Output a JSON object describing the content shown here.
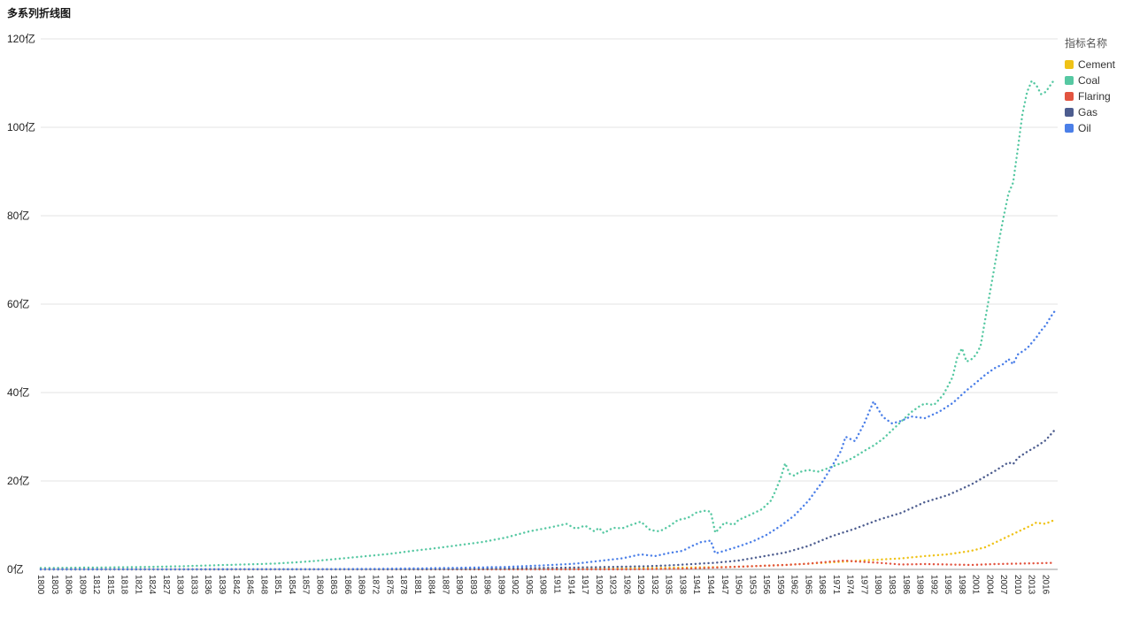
{
  "page": {
    "title": "多系列折线图"
  },
  "legend": {
    "title": "指标名称",
    "items": [
      {
        "label": "Cement",
        "color": "#EFC217"
      },
      {
        "label": "Coal",
        "color": "#56C8A2"
      },
      {
        "label": "Flaring",
        "color": "#E25440"
      },
      {
        "label": "Gas",
        "color": "#4D5D8F"
      },
      {
        "label": "Oil",
        "color": "#4B7FE8"
      }
    ]
  },
  "chart_data": {
    "type": "line",
    "point_style": "dotted",
    "title": "多系列折线图",
    "xlabel": "",
    "ylabel": "",
    "values_unit": "亿",
    "ylim": [
      0,
      120
    ],
    "x_start": 1800,
    "x_end": 2018,
    "x_step": 1,
    "interpolation": "linear",
    "grid": true,
    "legend_position": "top-right",
    "axis": {
      "y_ticks": [
        "0亿",
        "20亿",
        "40亿",
        "60亿",
        "80亿",
        "100亿",
        "120亿"
      ],
      "y_tick_values": [
        0,
        20,
        40,
        60,
        80,
        100,
        120
      ],
      "x_ticks": [
        1800,
        1803,
        1806,
        1809,
        1812,
        1815,
        1818,
        1821,
        1824,
        1827,
        1830,
        1833,
        1836,
        1839,
        1842,
        1845,
        1848,
        1851,
        1854,
        1857,
        1860,
        1863,
        1866,
        1869,
        1872,
        1875,
        1878,
        1881,
        1884,
        1887,
        1890,
        1893,
        1896,
        1899,
        1902,
        1905,
        1908,
        1911,
        1914,
        1917,
        1920,
        1923,
        1926,
        1929,
        1932,
        1935,
        1938,
        1941,
        1944,
        1947,
        1950,
        1953,
        1956,
        1959,
        1962,
        1965,
        1968,
        1971,
        1974,
        1977,
        1980,
        1983,
        1986,
        1989,
        1992,
        1995,
        1998,
        2001,
        2004,
        2007,
        2010,
        2013,
        2016
      ]
    },
    "series": [
      {
        "name": "Cement",
        "color": "#EFC217",
        "keypoints": [
          [
            1800,
            0
          ],
          [
            1895,
            0.02
          ],
          [
            1910,
            0.1
          ],
          [
            1920,
            0.18
          ],
          [
            1930,
            0.3
          ],
          [
            1940,
            0.42
          ],
          [
            1950,
            0.6
          ],
          [
            1960,
            1.0
          ],
          [
            1970,
            1.6
          ],
          [
            1980,
            2.2
          ],
          [
            1985,
            2.5
          ],
          [
            1990,
            3.0
          ],
          [
            1995,
            3.4
          ],
          [
            2000,
            4.2
          ],
          [
            2003,
            5.0
          ],
          [
            2005,
            6.0
          ],
          [
            2008,
            7.5
          ],
          [
            2010,
            8.5
          ],
          [
            2012,
            9.5
          ],
          [
            2013,
            10.0
          ],
          [
            2014,
            10.6
          ],
          [
            2015,
            10.4
          ],
          [
            2016,
            10.3
          ],
          [
            2017,
            10.8
          ],
          [
            2018,
            11.2
          ]
        ]
      },
      {
        "name": "Coal",
        "color": "#56C8A2",
        "keypoints": [
          [
            1800,
            0.3
          ],
          [
            1810,
            0.4
          ],
          [
            1820,
            0.5
          ],
          [
            1830,
            0.7
          ],
          [
            1840,
            1.0
          ],
          [
            1850,
            1.3
          ],
          [
            1855,
            1.6
          ],
          [
            1860,
            2.0
          ],
          [
            1865,
            2.5
          ],
          [
            1870,
            3.0
          ],
          [
            1875,
            3.5
          ],
          [
            1880,
            4.2
          ],
          [
            1885,
            4.8
          ],
          [
            1890,
            5.5
          ],
          [
            1895,
            6.2
          ],
          [
            1900,
            7.2
          ],
          [
            1905,
            8.6
          ],
          [
            1910,
            9.6
          ],
          [
            1913,
            10.3
          ],
          [
            1915,
            9.2
          ],
          [
            1917,
            9.9
          ],
          [
            1919,
            8.6
          ],
          [
            1920,
            9.4
          ],
          [
            1921,
            8.2
          ],
          [
            1923,
            9.4
          ],
          [
            1925,
            9.3
          ],
          [
            1927,
            10.1
          ],
          [
            1929,
            10.8
          ],
          [
            1931,
            8.9
          ],
          [
            1933,
            8.6
          ],
          [
            1935,
            9.7
          ],
          [
            1937,
            11.2
          ],
          [
            1939,
            11.6
          ],
          [
            1941,
            12.9
          ],
          [
            1943,
            13.3
          ],
          [
            1944,
            13.0
          ],
          [
            1945,
            8.3
          ],
          [
            1947,
            10.6
          ],
          [
            1949,
            10.1
          ],
          [
            1950,
            11.2
          ],
          [
            1952,
            12.1
          ],
          [
            1955,
            13.6
          ],
          [
            1957,
            15.6
          ],
          [
            1958,
            18.0
          ],
          [
            1959,
            20.5
          ],
          [
            1960,
            24.0
          ],
          [
            1961,
            21.6
          ],
          [
            1962,
            21.2
          ],
          [
            1963,
            22.0
          ],
          [
            1965,
            22.5
          ],
          [
            1967,
            22.1
          ],
          [
            1969,
            22.8
          ],
          [
            1971,
            23.6
          ],
          [
            1973,
            24.4
          ],
          [
            1975,
            25.5
          ],
          [
            1977,
            26.8
          ],
          [
            1979,
            28.0
          ],
          [
            1981,
            29.5
          ],
          [
            1983,
            31.5
          ],
          [
            1985,
            33.5
          ],
          [
            1987,
            35.5
          ],
          [
            1989,
            37.0
          ],
          [
            1990,
            37.5
          ],
          [
            1992,
            37.2
          ],
          [
            1994,
            39.5
          ],
          [
            1996,
            43.5
          ],
          [
            1997,
            48.0
          ],
          [
            1998,
            50.0
          ],
          [
            1999,
            47.0
          ],
          [
            2000,
            47.5
          ],
          [
            2001,
            48.5
          ],
          [
            2002,
            50.5
          ],
          [
            2003,
            56.5
          ],
          [
            2004,
            62.5
          ],
          [
            2005,
            68.5
          ],
          [
            2006,
            74.5
          ],
          [
            2007,
            80.0
          ],
          [
            2008,
            85.0
          ],
          [
            2009,
            87.5
          ],
          [
            2010,
            95.0
          ],
          [
            2011,
            103.0
          ],
          [
            2012,
            108.0
          ],
          [
            2013,
            110.5
          ],
          [
            2014,
            109.5
          ],
          [
            2015,
            107.5
          ],
          [
            2016,
            108.0
          ],
          [
            2017,
            109.5
          ],
          [
            2018,
            111.0
          ]
        ]
      },
      {
        "name": "Flaring",
        "color": "#E25440",
        "keypoints": [
          [
            1800,
            0
          ],
          [
            1925,
            0
          ],
          [
            1930,
            0.05
          ],
          [
            1935,
            0.1
          ],
          [
            1940,
            0.2
          ],
          [
            1945,
            0.4
          ],
          [
            1950,
            0.6
          ],
          [
            1955,
            0.8
          ],
          [
            1960,
            1.0
          ],
          [
            1965,
            1.3
          ],
          [
            1970,
            1.8
          ],
          [
            1973,
            2.0
          ],
          [
            1975,
            1.8
          ],
          [
            1980,
            1.5
          ],
          [
            1985,
            1.1
          ],
          [
            1990,
            1.2
          ],
          [
            1995,
            1.1
          ],
          [
            2000,
            1.0
          ],
          [
            2005,
            1.2
          ],
          [
            2010,
            1.3
          ],
          [
            2015,
            1.4
          ],
          [
            2018,
            1.5
          ]
        ]
      },
      {
        "name": "Gas",
        "color": "#4D5D8F",
        "keypoints": [
          [
            1800,
            0
          ],
          [
            1880,
            0.02
          ],
          [
            1890,
            0.1
          ],
          [
            1900,
            0.2
          ],
          [
            1910,
            0.35
          ],
          [
            1920,
            0.5
          ],
          [
            1930,
            0.7
          ],
          [
            1935,
            0.9
          ],
          [
            1940,
            1.2
          ],
          [
            1945,
            1.5
          ],
          [
            1950,
            2.0
          ],
          [
            1955,
            2.9
          ],
          [
            1960,
            3.8
          ],
          [
            1965,
            5.3
          ],
          [
            1970,
            7.5
          ],
          [
            1975,
            9.2
          ],
          [
            1980,
            11.2
          ],
          [
            1985,
            12.8
          ],
          [
            1990,
            15.2
          ],
          [
            1995,
            16.8
          ],
          [
            2000,
            19.2
          ],
          [
            2005,
            22.2
          ],
          [
            2008,
            24.2
          ],
          [
            2009,
            23.8
          ],
          [
            2010,
            25.2
          ],
          [
            2012,
            26.6
          ],
          [
            2014,
            27.8
          ],
          [
            2016,
            29.2
          ],
          [
            2017,
            30.4
          ],
          [
            2018,
            31.6
          ]
        ]
      },
      {
        "name": "Oil",
        "color": "#4B7FE8",
        "keypoints": [
          [
            1800,
            0
          ],
          [
            1860,
            0.05
          ],
          [
            1870,
            0.1
          ],
          [
            1880,
            0.2
          ],
          [
            1890,
            0.35
          ],
          [
            1900,
            0.55
          ],
          [
            1910,
            1.0
          ],
          [
            1915,
            1.3
          ],
          [
            1920,
            1.9
          ],
          [
            1925,
            2.5
          ],
          [
            1929,
            3.4
          ],
          [
            1932,
            3.0
          ],
          [
            1935,
            3.7
          ],
          [
            1938,
            4.2
          ],
          [
            1940,
            5.3
          ],
          [
            1942,
            6.2
          ],
          [
            1944,
            6.5
          ],
          [
            1945,
            3.6
          ],
          [
            1947,
            4.2
          ],
          [
            1950,
            5.2
          ],
          [
            1953,
            6.3
          ],
          [
            1956,
            7.8
          ],
          [
            1959,
            9.8
          ],
          [
            1962,
            12.2
          ],
          [
            1965,
            15.5
          ],
          [
            1968,
            19.8
          ],
          [
            1970,
            23.2
          ],
          [
            1972,
            26.8
          ],
          [
            1973,
            30.0
          ],
          [
            1975,
            29.0
          ],
          [
            1977,
            33.0
          ],
          [
            1979,
            38.0
          ],
          [
            1981,
            34.5
          ],
          [
            1983,
            33.0
          ],
          [
            1985,
            33.6
          ],
          [
            1987,
            34.6
          ],
          [
            1990,
            34.2
          ],
          [
            1993,
            35.6
          ],
          [
            1996,
            37.6
          ],
          [
            1999,
            40.5
          ],
          [
            2001,
            42.2
          ],
          [
            2003,
            44.0
          ],
          [
            2005,
            45.5
          ],
          [
            2007,
            46.5
          ],
          [
            2008,
            47.6
          ],
          [
            2009,
            46.4
          ],
          [
            2010,
            48.6
          ],
          [
            2012,
            50.0
          ],
          [
            2014,
            52.5
          ],
          [
            2015,
            54.0
          ],
          [
            2016,
            55.2
          ],
          [
            2017,
            57.0
          ],
          [
            2018,
            58.5
          ]
        ]
      }
    ]
  }
}
